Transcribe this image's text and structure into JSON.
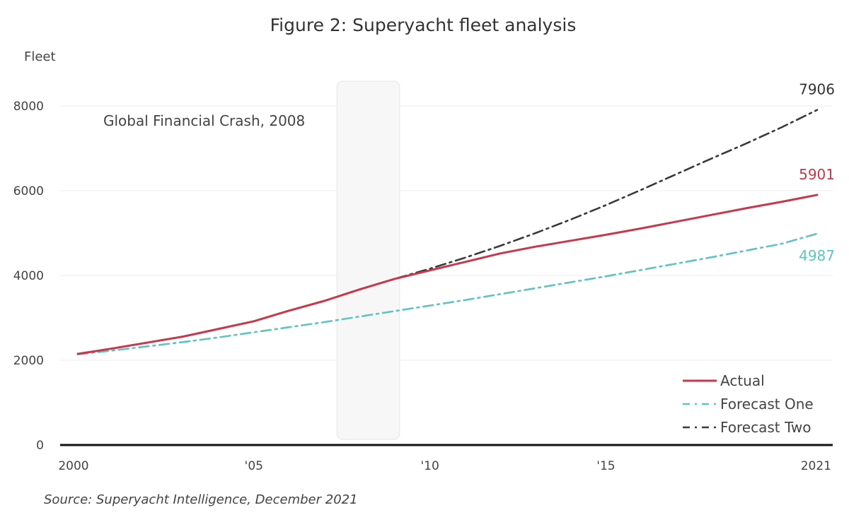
{
  "chart_data": {
    "type": "line",
    "title": "Figure 2: Superyacht fleet analysis",
    "ylabel": "Fleet",
    "xlabel": "",
    "x": [
      2000,
      2001,
      2002,
      2003,
      2004,
      2005,
      2006,
      2007,
      2008,
      2009,
      2010,
      2011,
      2012,
      2013,
      2014,
      2015,
      2016,
      2017,
      2018,
      2019,
      2020,
      2021
    ],
    "xticks": [
      {
        "value": 2000,
        "label": "2000"
      },
      {
        "value": 2005,
        "label": "'05"
      },
      {
        "value": 2010,
        "label": "'10"
      },
      {
        "value": 2015,
        "label": "'15"
      },
      {
        "value": 2021,
        "label": "2021"
      }
    ],
    "ylim": [
      0,
      8500
    ],
    "yticks": [
      0,
      2000,
      4000,
      6000,
      8000
    ],
    "grid": true,
    "legend_position": "bottom-right",
    "series": [
      {
        "name": "Actual",
        "color": "#c8374a",
        "style": "solid",
        "start": 2000,
        "values": [
          2150,
          2280,
          2420,
          2560,
          2740,
          2920,
          3170,
          3400,
          3670,
          3920,
          4120,
          4320,
          4520,
          4680,
          4820,
          4960,
          5110,
          5270,
          5430,
          5590,
          5740,
          5901
        ],
        "end_label": "5901"
      },
      {
        "name": "Forecast One",
        "color": "#5fc3c4",
        "style": "dashdot",
        "start": 2000,
        "values": [
          2140,
          2230,
          2330,
          2430,
          2540,
          2660,
          2780,
          2900,
          3030,
          3160,
          3290,
          3420,
          3560,
          3700,
          3840,
          3980,
          4130,
          4280,
          4430,
          4590,
          4750,
          4987
        ],
        "end_label": "4987"
      },
      {
        "name": "Forecast Two",
        "color": "#3a3a3e",
        "style": "dashdot",
        "start": 2000,
        "values": [
          2150,
          2280,
          2420,
          2560,
          2740,
          2920,
          3170,
          3400,
          3670,
          3920,
          4160,
          4420,
          4700,
          5000,
          5320,
          5660,
          6020,
          6390,
          6760,
          7120,
          7500,
          7906
        ],
        "end_label": "7906"
      }
    ],
    "annotations": [
      {
        "text": "Global Financial Crash, 2008",
        "x_start": 2007.5,
        "x_end": 2009.0
      }
    ]
  },
  "source": "Source: Superyacht Intelligence, December 2021"
}
